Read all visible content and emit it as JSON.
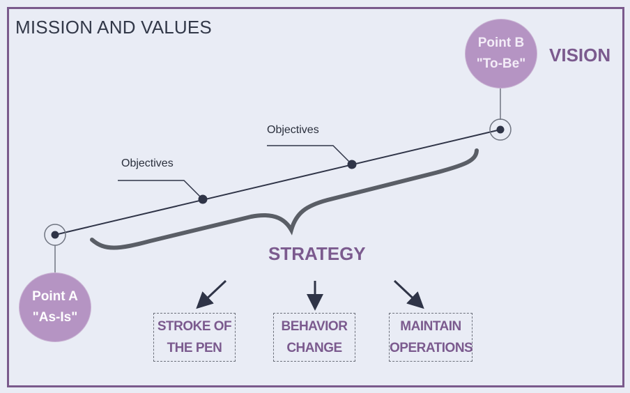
{
  "title": "MISSION AND VALUES",
  "vision_label": "VISION",
  "strategy_label": "STRATEGY",
  "point_b": {
    "line1": "Point B",
    "line2": "\"To-Be\""
  },
  "point_a": {
    "line1": "Point A",
    "line2": "\"As-Is\""
  },
  "objectives": [
    "Objectives",
    "Objectives"
  ],
  "outcomes": [
    {
      "line1": "STROKE OF",
      "line2": "THE PEN"
    },
    {
      "line1": "BEHAVIOR",
      "line2": "CHANGE"
    },
    {
      "line1": "MAINTAIN",
      "line2": "OPERATIONS"
    }
  ],
  "colors": {
    "accent": "#7b5a8e",
    "circle_fill": "#b594c3",
    "background": "#e9ecf5",
    "line": "#2f3447"
  }
}
